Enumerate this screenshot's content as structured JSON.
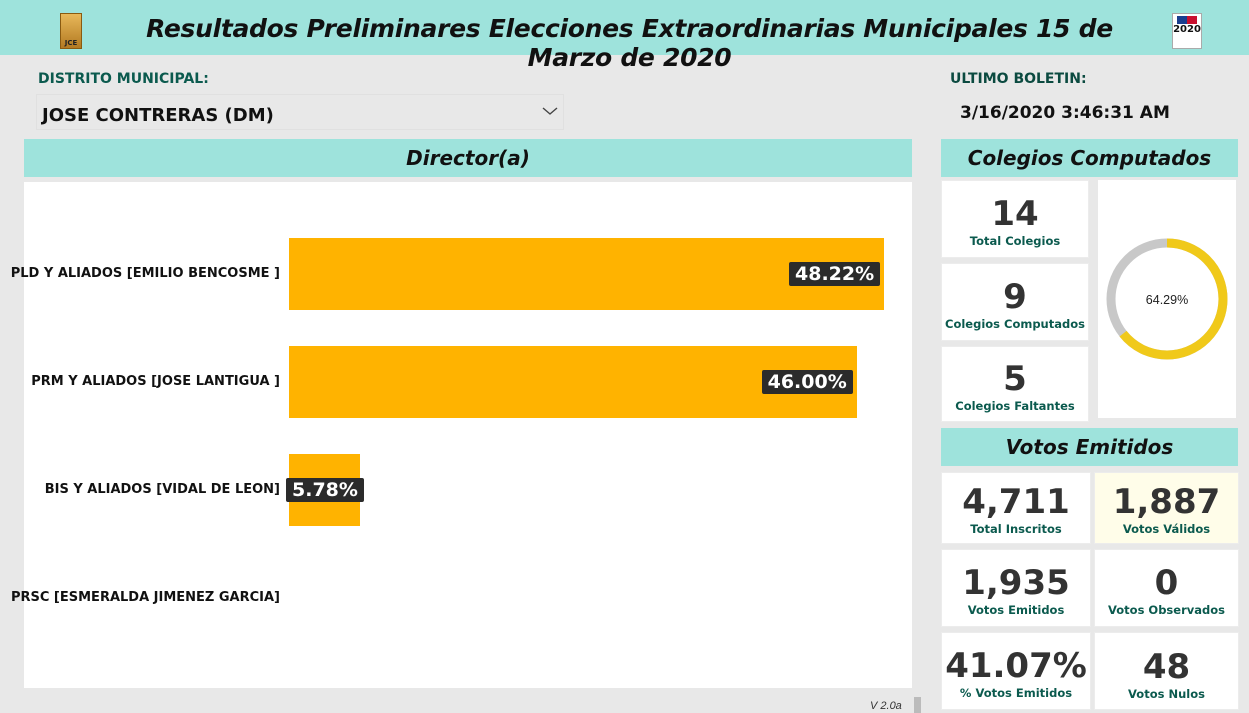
{
  "header": {
    "title": "Resultados Preliminares Elecciones Extraordinarias Municipales 15 de Marzo de 2020",
    "logo_left_text": "JCE",
    "logo_right_year": "2020"
  },
  "district": {
    "label": "DISTRITO MUNICIPAL:",
    "value": "JOSE CONTRERAS (DM)"
  },
  "boletin": {
    "label": "ULTIMO BOLETIN:",
    "value": "3/16/2020 3:46:31 AM"
  },
  "chart_section": {
    "title": "Director(a)"
  },
  "chart_data": {
    "type": "bar",
    "orientation": "horizontal",
    "categories": [
      "PLD Y ALIADOS [EMILIO BENCOSME ]",
      "PRM Y ALIADOS [JOSE LANTIGUA ]",
      "BIS Y ALIADOS [VIDAL DE LEON]",
      "PRSC [ESMERALDA JIMENEZ GARCIA]"
    ],
    "values": [
      48.22,
      46.0,
      5.78,
      0
    ],
    "value_labels": [
      "48.22%",
      "46.00%",
      "5.78%",
      ""
    ],
    "bar_color": "#ffb300",
    "xlim": [
      0,
      48.22
    ]
  },
  "colegios": {
    "title": "Colegios Computados",
    "total": {
      "value": "14",
      "caption": "Total Colegios"
    },
    "computados": {
      "value": "9",
      "caption": "Colegios Computados"
    },
    "faltantes": {
      "value": "5",
      "caption": "Colegios Faltantes"
    },
    "donut": {
      "percent": 64.29,
      "label": "64.29%",
      "fill_color": "#f0c91a",
      "track_color": "#c8c8c8"
    }
  },
  "votos": {
    "title": "Votos Emitidos",
    "total_inscritos": {
      "value": "4,711",
      "caption": "Total Inscritos"
    },
    "votos_validos": {
      "value": "1,887",
      "caption": "Votos Válidos"
    },
    "votos_emitidos": {
      "value": "1,935",
      "caption": "Votos Emitidos"
    },
    "votos_observados": {
      "value": "0",
      "caption": "Votos Observados"
    },
    "pct_emitidos": {
      "value": "41.07%",
      "caption": "% Votos Emitidos"
    },
    "votos_nulos": {
      "value": "48",
      "caption": "Votos Nulos"
    }
  },
  "footer": {
    "version": "V 2.0a"
  }
}
